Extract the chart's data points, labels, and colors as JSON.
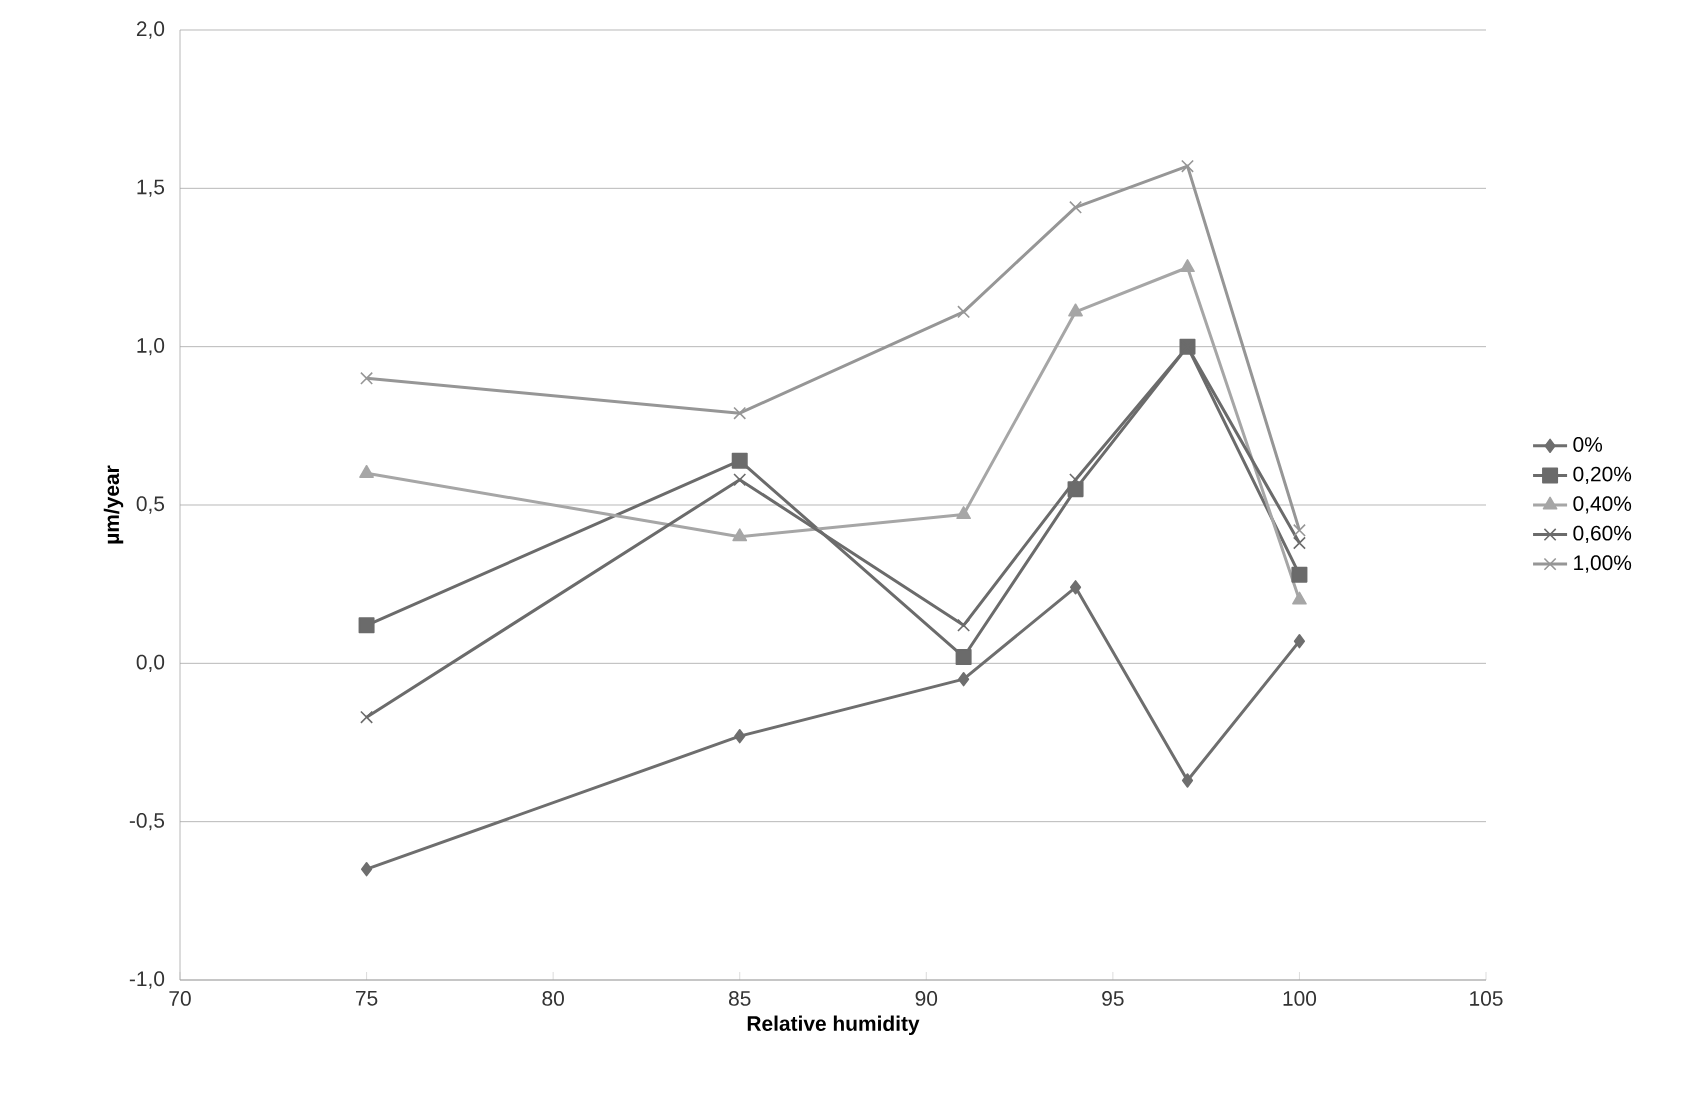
{
  "chart_data": {
    "type": "line",
    "xlabel": "Relative humidity",
    "ylabel": "µm/year",
    "x": [
      75,
      85,
      91,
      94,
      97,
      100
    ],
    "series": [
      {
        "name": "0%",
        "color": "#6e6e6e",
        "marker": "diamond",
        "values": [
          -0.65,
          -0.23,
          -0.05,
          0.24,
          -0.37,
          0.07
        ]
      },
      {
        "name": "0,20%",
        "color": "#6b6b6b",
        "marker": "square",
        "values": [
          0.12,
          0.64,
          0.02,
          0.55,
          1.0,
          0.28
        ]
      },
      {
        "name": "0,40%",
        "color": "#a6a6a6",
        "marker": "triangle",
        "values": [
          0.6,
          0.4,
          0.47,
          1.11,
          1.25,
          0.2
        ]
      },
      {
        "name": "0,60%",
        "color": "#6b6b6b",
        "marker": "cross",
        "values": [
          -0.17,
          0.58,
          0.12,
          0.58,
          1.0,
          0.38
        ]
      },
      {
        "name": "1,00%",
        "color": "#969696",
        "marker": "cross",
        "values": [
          0.9,
          0.79,
          1.11,
          1.44,
          1.57,
          0.42
        ]
      }
    ],
    "xlim": [
      70,
      105
    ],
    "xticks": [
      70,
      75,
      80,
      85,
      90,
      95,
      100,
      105
    ],
    "ylim": [
      -1,
      2
    ],
    "yticks": [
      {
        "value": -1,
        "label": "-1,0"
      },
      {
        "value": -0.5,
        "label": "-0,5"
      },
      {
        "value": 0,
        "label": "0,0"
      },
      {
        "value": 0.5,
        "label": "0,5"
      },
      {
        "value": 1,
        "label": "1,0"
      },
      {
        "value": 1.5,
        "label": "1,5"
      },
      {
        "value": 2,
        "label": "2,0"
      }
    ],
    "grid": "y",
    "legend": "right",
    "line_style": "solid"
  }
}
